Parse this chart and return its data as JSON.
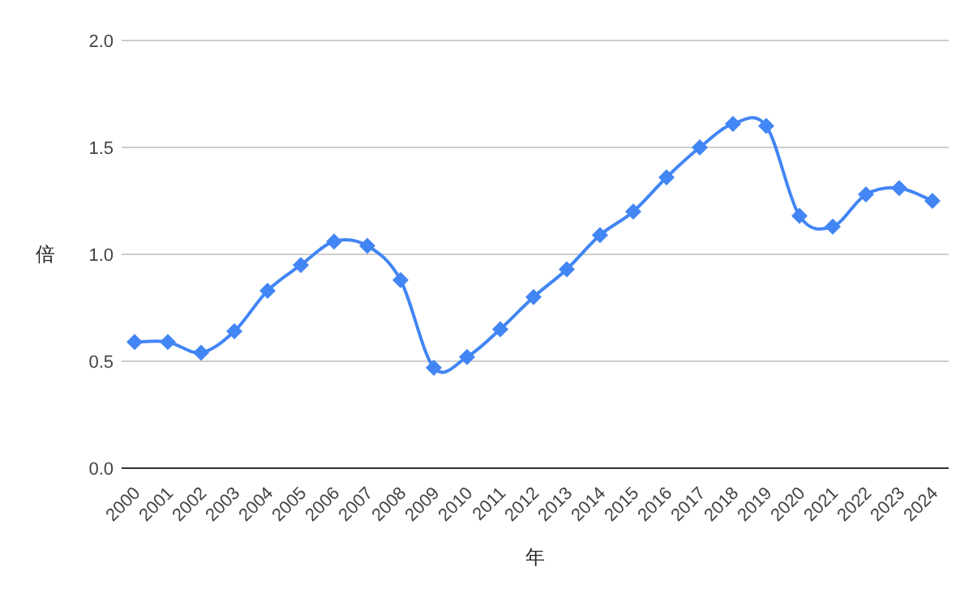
{
  "chart_data": {
    "type": "line",
    "xlabel": "年",
    "ylabel": "倍",
    "categories": [
      "2000",
      "2001",
      "2002",
      "2003",
      "2004",
      "2005",
      "2006",
      "2007",
      "2008",
      "2009",
      "2010",
      "2011",
      "2012",
      "2013",
      "2014",
      "2015",
      "2016",
      "2017",
      "2018",
      "2019",
      "2020",
      "2021",
      "2022",
      "2023",
      "2024"
    ],
    "values": [
      0.59,
      0.59,
      0.54,
      0.64,
      0.83,
      0.95,
      1.06,
      1.04,
      0.88,
      0.47,
      0.52,
      0.65,
      0.8,
      0.93,
      1.09,
      1.2,
      1.36,
      1.5,
      1.61,
      1.6,
      1.18,
      1.13,
      1.28,
      1.31,
      1.25
    ],
    "color": "#4285f4",
    "ylim": [
      0,
      2
    ],
    "yticks": [
      {
        "value": 0,
        "label": "0.0"
      },
      {
        "value": 0.5,
        "label": "0.5"
      },
      {
        "value": 1,
        "label": "1.0"
      },
      {
        "value": 1.5,
        "label": "1.5"
      },
      {
        "value": 2,
        "label": "2.0"
      }
    ],
    "grid": "y",
    "marker": "diamond",
    "line_style": "solid"
  }
}
